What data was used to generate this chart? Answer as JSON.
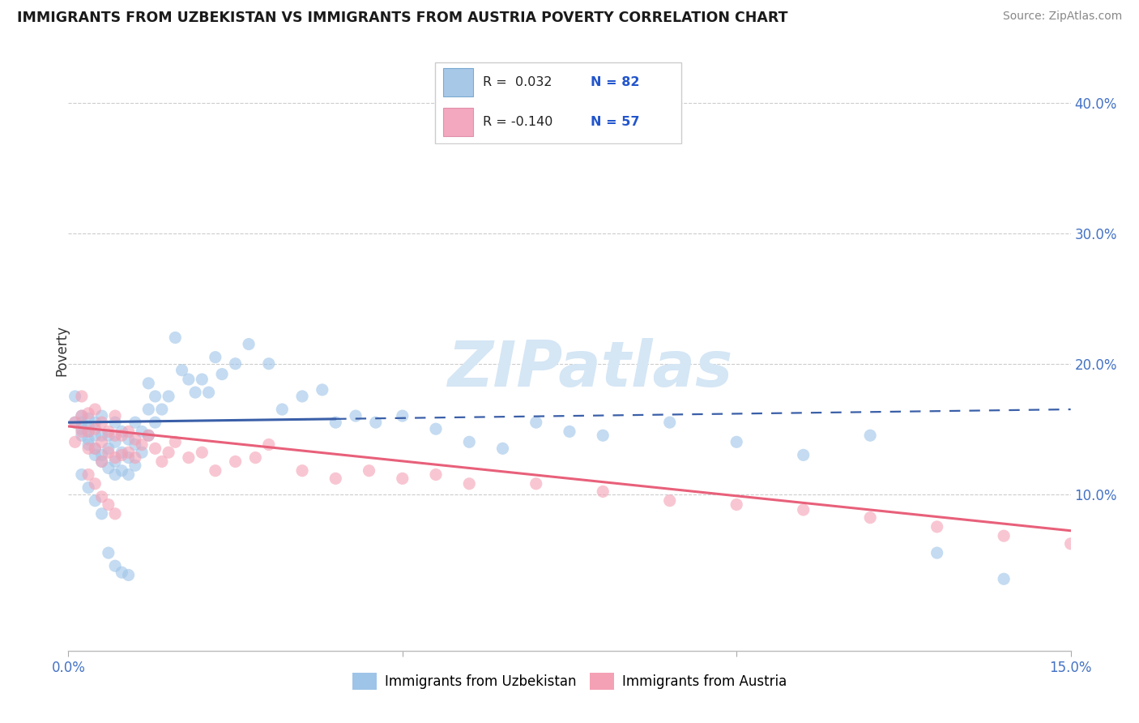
{
  "title": "IMMIGRANTS FROM UZBEKISTAN VS IMMIGRANTS FROM AUSTRIA POVERTY CORRELATION CHART",
  "source": "Source: ZipAtlas.com",
  "ylabel": "Poverty",
  "xlim": [
    0.0,
    0.15
  ],
  "ylim": [
    -0.02,
    0.44
  ],
  "plot_ylim": [
    -0.02,
    0.44
  ],
  "xticks": [
    0.0,
    0.05,
    0.1,
    0.15
  ],
  "xtick_labels": [
    "0.0%",
    "",
    "",
    "15.0%"
  ],
  "yticks_right": [
    0.1,
    0.2,
    0.3,
    0.4
  ],
  "ytick_labels_right": [
    "10.0%",
    "20.0%",
    "30.0%",
    "40.0%"
  ],
  "color_uzbekistan": "#9ec4e8",
  "color_austria": "#f4a0b5",
  "line_color_uzbekistan": "#3a5fa8",
  "line_color_austria": "#e8607a",
  "watermark_color": "#d5e6f5",
  "scatter_size": 120,
  "scatter_alpha": 0.6,
  "uz_x": [
    0.001,
    0.001,
    0.002,
    0.002,
    0.002,
    0.002,
    0.003,
    0.003,
    0.003,
    0.003,
    0.003,
    0.004,
    0.004,
    0.004,
    0.004,
    0.005,
    0.005,
    0.005,
    0.005,
    0.006,
    0.006,
    0.006,
    0.007,
    0.007,
    0.007,
    0.007,
    0.008,
    0.008,
    0.008,
    0.009,
    0.009,
    0.009,
    0.01,
    0.01,
    0.01,
    0.011,
    0.011,
    0.012,
    0.012,
    0.012,
    0.013,
    0.013,
    0.014,
    0.015,
    0.016,
    0.017,
    0.018,
    0.019,
    0.02,
    0.021,
    0.022,
    0.023,
    0.025,
    0.027,
    0.03,
    0.032,
    0.035,
    0.038,
    0.04,
    0.043,
    0.046,
    0.05,
    0.055,
    0.06,
    0.065,
    0.07,
    0.075,
    0.08,
    0.09,
    0.1,
    0.11,
    0.12,
    0.13,
    0.14,
    0.002,
    0.003,
    0.004,
    0.005,
    0.006,
    0.007,
    0.008,
    0.009
  ],
  "uz_y": [
    0.175,
    0.155,
    0.16,
    0.155,
    0.15,
    0.145,
    0.152,
    0.148,
    0.158,
    0.142,
    0.138,
    0.155,
    0.145,
    0.135,
    0.13,
    0.16,
    0.145,
    0.13,
    0.125,
    0.145,
    0.135,
    0.12,
    0.155,
    0.14,
    0.125,
    0.115,
    0.148,
    0.132,
    0.118,
    0.142,
    0.128,
    0.115,
    0.155,
    0.138,
    0.122,
    0.148,
    0.132,
    0.185,
    0.165,
    0.145,
    0.175,
    0.155,
    0.165,
    0.175,
    0.22,
    0.195,
    0.188,
    0.178,
    0.188,
    0.178,
    0.205,
    0.192,
    0.2,
    0.215,
    0.2,
    0.165,
    0.175,
    0.18,
    0.155,
    0.16,
    0.155,
    0.16,
    0.15,
    0.14,
    0.135,
    0.155,
    0.148,
    0.145,
    0.155,
    0.14,
    0.13,
    0.145,
    0.055,
    0.035,
    0.115,
    0.105,
    0.095,
    0.085,
    0.055,
    0.045,
    0.04,
    0.038
  ],
  "at_x": [
    0.001,
    0.001,
    0.002,
    0.002,
    0.002,
    0.003,
    0.003,
    0.003,
    0.004,
    0.004,
    0.004,
    0.005,
    0.005,
    0.005,
    0.006,
    0.006,
    0.007,
    0.007,
    0.007,
    0.008,
    0.008,
    0.009,
    0.009,
    0.01,
    0.01,
    0.011,
    0.012,
    0.013,
    0.014,
    0.015,
    0.016,
    0.018,
    0.02,
    0.022,
    0.025,
    0.028,
    0.03,
    0.035,
    0.04,
    0.045,
    0.05,
    0.055,
    0.06,
    0.07,
    0.08,
    0.09,
    0.1,
    0.11,
    0.12,
    0.13,
    0.14,
    0.15,
    0.003,
    0.004,
    0.005,
    0.006,
    0.007
  ],
  "at_y": [
    0.155,
    0.14,
    0.175,
    0.16,
    0.148,
    0.162,
    0.148,
    0.135,
    0.165,
    0.15,
    0.135,
    0.155,
    0.14,
    0.125,
    0.148,
    0.132,
    0.16,
    0.145,
    0.128,
    0.145,
    0.13,
    0.148,
    0.132,
    0.142,
    0.128,
    0.138,
    0.145,
    0.135,
    0.125,
    0.132,
    0.14,
    0.128,
    0.132,
    0.118,
    0.125,
    0.128,
    0.138,
    0.118,
    0.112,
    0.118,
    0.112,
    0.115,
    0.108,
    0.108,
    0.102,
    0.095,
    0.092,
    0.088,
    0.082,
    0.075,
    0.068,
    0.062,
    0.115,
    0.108,
    0.098,
    0.092,
    0.085
  ],
  "uz_line_x0": 0.0,
  "uz_line_x1": 0.15,
  "uz_line_y0": 0.155,
  "uz_line_y1": 0.165,
  "uz_line_solid_end": 0.04,
  "at_line_x0": 0.0,
  "at_line_x1": 0.15,
  "at_line_y0": 0.152,
  "at_line_y1": 0.072
}
